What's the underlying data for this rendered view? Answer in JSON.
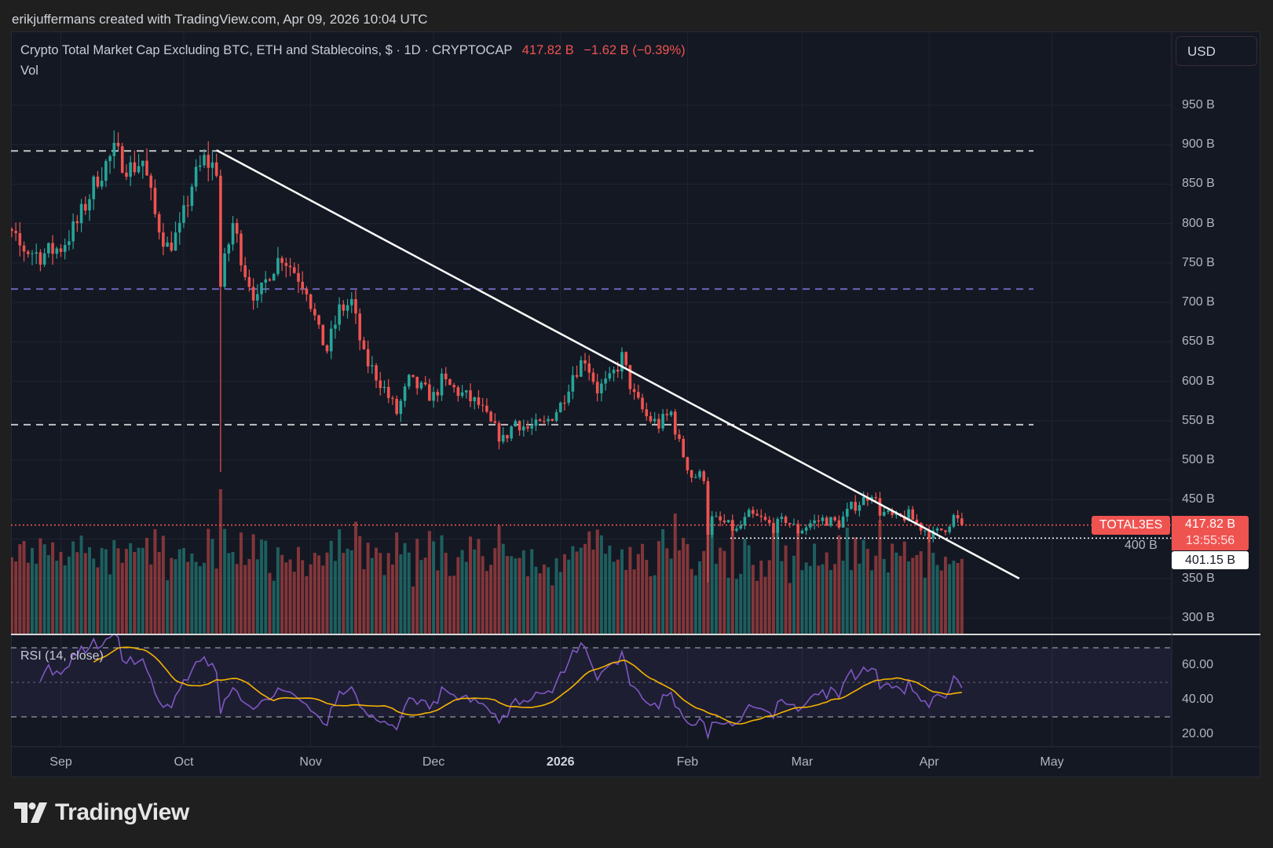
{
  "header": {
    "credit": "erikjuffermans created with TradingView.com, Apr 09, 2026 10:04 UTC"
  },
  "legend": {
    "title": "Crypto Total Market Cap Excluding BTC, ETH and Stablecoins, $ · 1D · CRYPTOCAP",
    "last": "417.82 B",
    "change": "−1.62 B (−0.39%)",
    "vol_label": "Vol",
    "rsi_label": "RSI (14, close)"
  },
  "currency_button": "USD",
  "markers": {
    "symbol": "TOTAL3ES",
    "last_price": "417.82 B",
    "countdown": "13:55:56",
    "support_price": "401.15 B"
  },
  "brand": {
    "name": "TradingView"
  },
  "colors": {
    "up": "#26a69a",
    "down": "#ef5350",
    "rsi": "#7e57c2",
    "rsi_ma": "#f5b300",
    "trendline": "#ffffff",
    "mid_level": "#7e6fd0"
  },
  "chart_data": {
    "type": "candlestick",
    "title": "Crypto Total Market Cap Excluding BTC, ETH and Stablecoins, $ · 1D · CRYPTOCAP",
    "price_unit": "B USD",
    "ylim": [
      280,
      1000
    ],
    "yticks": [
      "950 B",
      "900 B",
      "850 B",
      "800 B",
      "750 B",
      "700 B",
      "650 B",
      "600 B",
      "550 B",
      "500 B",
      "450 B",
      "400 B",
      "350 B",
      "300 B"
    ],
    "ytick_values": [
      950,
      900,
      850,
      800,
      750,
      700,
      650,
      600,
      550,
      500,
      450,
      400,
      350,
      300
    ],
    "xticks": [
      {
        "label": "Sep",
        "date": "2025-09-01",
        "bold": false
      },
      {
        "label": "Oct",
        "date": "2025-10-01",
        "bold": false
      },
      {
        "label": "Nov",
        "date": "2025-11-01",
        "bold": false
      },
      {
        "label": "Dec",
        "date": "2025-12-01",
        "bold": false
      },
      {
        "label": "2026",
        "date": "2026-01-01",
        "bold": true
      },
      {
        "label": "Feb",
        "date": "2026-02-01",
        "bold": false
      },
      {
        "label": "Mar",
        "date": "2026-03-01",
        "bold": false
      },
      {
        "label": "Apr",
        "date": "2026-04-01",
        "bold": false
      },
      {
        "label": "May",
        "date": "2026-05-01",
        "bold": false
      }
    ],
    "grid": true,
    "closes": [
      {
        "d": "2025-08-13",
        "c": 760
      },
      {
        "d": "2025-08-17",
        "c": 800
      },
      {
        "d": "2025-08-22",
        "c": 770
      },
      {
        "d": "2025-08-27",
        "c": 760
      },
      {
        "d": "2025-09-01",
        "c": 770
      },
      {
        "d": "2025-09-05",
        "c": 800
      },
      {
        "d": "2025-09-10",
        "c": 860
      },
      {
        "d": "2025-09-14",
        "c": 890
      },
      {
        "d": "2025-09-18",
        "c": 870
      },
      {
        "d": "2025-09-21",
        "c": 880
      },
      {
        "d": "2025-09-24",
        "c": 810
      },
      {
        "d": "2025-09-27",
        "c": 770
      },
      {
        "d": "2025-09-30",
        "c": 790
      },
      {
        "d": "2025-10-03",
        "c": 850
      },
      {
        "d": "2025-10-06",
        "c": 880
      },
      {
        "d": "2025-10-09",
        "c": 870
      },
      {
        "d": "2025-10-10",
        "c": 720,
        "low": 485
      },
      {
        "d": "2025-10-11",
        "c": 750
      },
      {
        "d": "2025-10-13",
        "c": 800
      },
      {
        "d": "2025-10-16",
        "c": 740
      },
      {
        "d": "2025-10-19",
        "c": 700
      },
      {
        "d": "2025-10-22",
        "c": 740
      },
      {
        "d": "2025-10-25",
        "c": 760
      },
      {
        "d": "2025-10-28",
        "c": 740
      },
      {
        "d": "2025-10-31",
        "c": 720
      },
      {
        "d": "2025-11-03",
        "c": 660
      },
      {
        "d": "2025-11-05",
        "c": 640
      },
      {
        "d": "2025-11-08",
        "c": 690
      },
      {
        "d": "2025-11-11",
        "c": 700
      },
      {
        "d": "2025-11-14",
        "c": 630
      },
      {
        "d": "2025-11-18",
        "c": 600
      },
      {
        "d": "2025-11-22",
        "c": 560
      },
      {
        "d": "2025-11-25",
        "c": 600
      },
      {
        "d": "2025-11-28",
        "c": 590
      },
      {
        "d": "2025-12-01",
        "c": 580
      },
      {
        "d": "2025-12-03",
        "c": 600
      },
      {
        "d": "2025-12-06",
        "c": 590
      },
      {
        "d": "2025-12-09",
        "c": 580
      },
      {
        "d": "2025-12-12",
        "c": 570
      },
      {
        "d": "2025-12-15",
        "c": 545
      },
      {
        "d": "2025-12-18",
        "c": 525
      },
      {
        "d": "2025-12-21",
        "c": 550
      },
      {
        "d": "2025-12-24",
        "c": 540
      },
      {
        "d": "2025-12-28",
        "c": 545
      },
      {
        "d": "2026-01-01",
        "c": 570
      },
      {
        "d": "2026-01-04",
        "c": 610
      },
      {
        "d": "2026-01-07",
        "c": 630
      },
      {
        "d": "2026-01-10",
        "c": 590
      },
      {
        "d": "2026-01-13",
        "c": 600
      },
      {
        "d": "2026-01-16",
        "c": 630
      },
      {
        "d": "2026-01-19",
        "c": 580
      },
      {
        "d": "2026-01-22",
        "c": 555
      },
      {
        "d": "2026-01-25",
        "c": 545
      },
      {
        "d": "2026-01-28",
        "c": 560
      },
      {
        "d": "2026-01-30",
        "c": 520
      },
      {
        "d": "2026-02-02",
        "c": 480
      },
      {
        "d": "2026-02-05",
        "c": 480
      },
      {
        "d": "2026-02-06",
        "c": 410,
        "low": 345
      },
      {
        "d": "2026-02-07",
        "c": 425
      },
      {
        "d": "2026-02-10",
        "c": 420
      },
      {
        "d": "2026-02-13",
        "c": 410
      },
      {
        "d": "2026-02-16",
        "c": 430
      },
      {
        "d": "2026-02-19",
        "c": 425
      },
      {
        "d": "2026-02-22",
        "c": 415
      },
      {
        "d": "2026-02-25",
        "c": 425
      },
      {
        "d": "2026-02-28",
        "c": 410
      },
      {
        "d": "2026-03-03",
        "c": 420
      },
      {
        "d": "2026-03-06",
        "c": 425
      },
      {
        "d": "2026-03-10",
        "c": 420
      },
      {
        "d": "2026-03-13",
        "c": 440
      },
      {
        "d": "2026-03-16",
        "c": 450
      },
      {
        "d": "2026-03-18",
        "c": 460
      },
      {
        "d": "2026-03-20",
        "c": 435
      },
      {
        "d": "2026-03-24",
        "c": 425
      },
      {
        "d": "2026-03-27",
        "c": 430
      },
      {
        "d": "2026-03-30",
        "c": 415
      },
      {
        "d": "2026-04-02",
        "c": 405
      },
      {
        "d": "2026-04-05",
        "c": 415
      },
      {
        "d": "2026-04-07",
        "c": 428
      },
      {
        "d": "2026-04-09",
        "c": 417.82
      }
    ],
    "horizontal_levels": [
      {
        "value": 892,
        "style": "dashed",
        "color": "#e0e0e0"
      },
      {
        "value": 717,
        "style": "dashed",
        "color": "#7e6fd0"
      },
      {
        "value": 545,
        "style": "dashed",
        "color": "#e0e0e0"
      },
      {
        "value": 417.82,
        "style": "dotted",
        "color": "#ef5350"
      },
      {
        "value": 401.15,
        "style": "dotted",
        "color": "#ffffff"
      }
    ],
    "trendline": {
      "start": {
        "date": "2025-10-09",
        "value": 893
      },
      "end": {
        "date": "2026-04-23",
        "value": 350
      }
    },
    "rsi": {
      "period": 14,
      "source": "close",
      "ma_period": 14,
      "upper_band": 70,
      "middle": 50,
      "lower_band": 30,
      "yticks": [
        "60.00",
        "40.00",
        "20.00"
      ],
      "ytick_values": [
        60,
        40,
        20
      ],
      "last": 47,
      "ma_last": 45
    }
  }
}
